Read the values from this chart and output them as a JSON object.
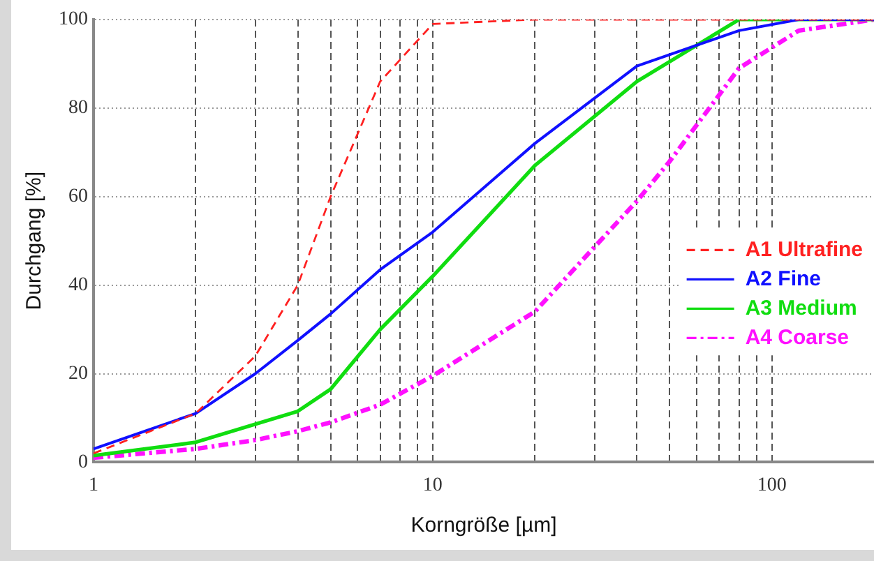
{
  "chart_data": {
    "type": "line",
    "xlabel": "Korngröße [µm]",
    "ylabel": "Durchgang [%]",
    "log": "x",
    "xlim": [
      1,
      200
    ],
    "ylim": [
      0,
      100
    ],
    "xticks": [
      1,
      {
        "value": 2,
        "label": null
      },
      {
        "value": 3,
        "label": null
      },
      {
        "value": 4,
        "label": null
      },
      {
        "value": 5,
        "label": null
      },
      {
        "value": 6,
        "label": null
      },
      {
        "value": 7,
        "label": null
      },
      {
        "value": 8,
        "label": null
      },
      {
        "value": 9,
        "label": null
      },
      10,
      {
        "value": 20,
        "label": null
      },
      {
        "value": 30,
        "label": null
      },
      {
        "value": 40,
        "label": null
      },
      {
        "value": 50,
        "label": null
      },
      {
        "value": 60,
        "label": null
      },
      {
        "value": 70,
        "label": null
      },
      {
        "value": 80,
        "label": null
      },
      {
        "value": 90,
        "label": null
      },
      100
    ],
    "yticks": [
      0,
      20,
      40,
      60,
      80,
      100
    ],
    "grid": true,
    "legend": "right",
    "marker": "none",
    "series": [
      {
        "name": "A1 Ultrafine",
        "color": "#ff2020",
        "line_style": "dashed",
        "x": [
          1,
          2,
          3,
          4,
          5,
          7,
          10,
          20,
          200
        ],
        "values": [
          2,
          11,
          24,
          40,
          60,
          86,
          99,
          100,
          100
        ]
      },
      {
        "name": "A2 Fine",
        "color": "#1010ff",
        "line_style": "solid",
        "x": [
          1,
          2,
          3,
          4,
          5,
          7,
          10,
          20,
          40,
          80,
          120,
          200
        ],
        "values": [
          3,
          11,
          20,
          27.5,
          33.5,
          43.5,
          52,
          72,
          89.5,
          97.5,
          100,
          100
        ]
      },
      {
        "name": "A3 Medium",
        "color": "#10dd10",
        "line_style": "solid",
        "x": [
          1,
          2,
          4,
          5,
          7,
          10,
          20,
          40,
          80,
          200
        ],
        "values": [
          1.5,
          4.5,
          11.5,
          16.5,
          30,
          42,
          67,
          86,
          100,
          100
        ]
      },
      {
        "name": "A4 Coarse",
        "color": "#ff10ff",
        "line_style": "dashdot",
        "x": [
          1,
          2,
          3,
          4,
          5,
          7,
          10,
          20,
          40,
          50,
          80,
          120,
          200
        ],
        "values": [
          1,
          3,
          5,
          7,
          9,
          13,
          19.5,
          34,
          59,
          68,
          89,
          97.5,
          100
        ]
      }
    ]
  }
}
